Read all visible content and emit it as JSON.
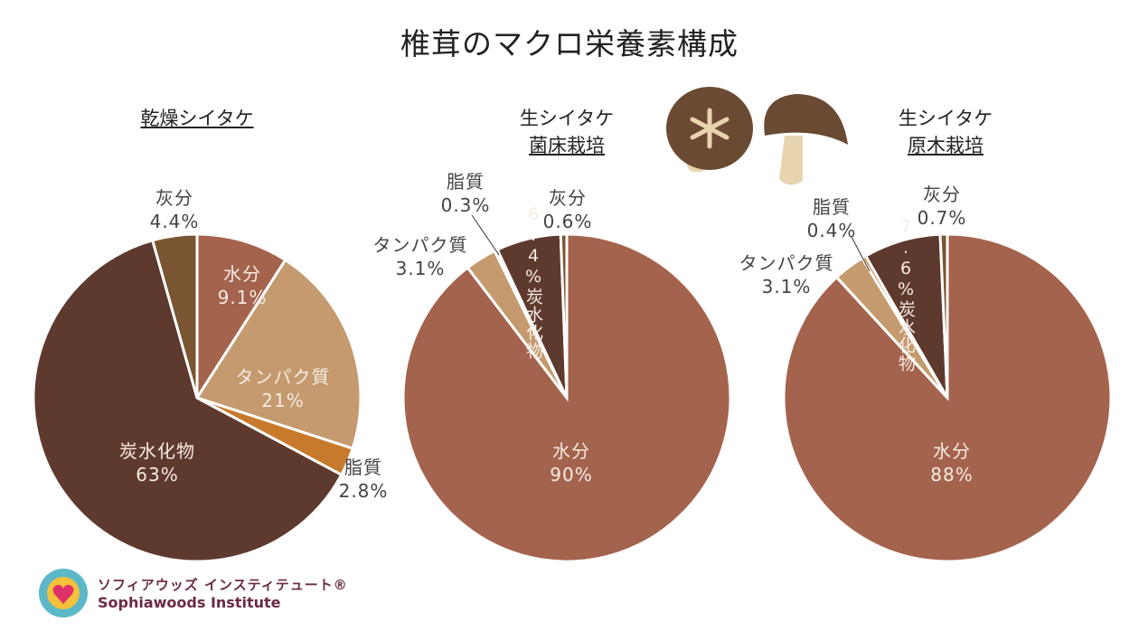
{
  "title": "椎茸のマクロ栄養素構成",
  "colors": {
    "水分": "#a4634d",
    "タンパク質": "#c49a6e",
    "脂質": "#c87a2c",
    "炭水化物": "#5e392d",
    "灰分": "#7a5532"
  },
  "chart_data": [
    {
      "type": "pie",
      "title": [
        "乾燥シイタケ"
      ],
      "categories": [
        "水分",
        "タンパク質",
        "脂質",
        "炭水化物",
        "灰分"
      ],
      "values": [
        9.1,
        21,
        2.8,
        63,
        4.4
      ],
      "labels": [
        "9.1%",
        "21%",
        "2.8%",
        "63%",
        "4.4%"
      ]
    },
    {
      "type": "pie",
      "title": [
        "生シイタケ",
        "菌床栽培"
      ],
      "categories": [
        "水分",
        "タンパク質",
        "脂質",
        "炭水化物",
        "灰分"
      ],
      "values": [
        90,
        3.1,
        0.3,
        6.4,
        0.6
      ],
      "labels": [
        "90%",
        "3.1%",
        "0.3%",
        "6.4%",
        "0.6%"
      ]
    },
    {
      "type": "pie",
      "title": [
        "生シイタケ",
        "原木栽培"
      ],
      "categories": [
        "水分",
        "タンパク質",
        "脂質",
        "炭水化物",
        "灰分"
      ],
      "values": [
        88,
        3.1,
        0.4,
        7.6,
        0.7
      ],
      "labels": [
        "88%",
        "3.1%",
        "0.4%",
        "7.6%",
        "0.7%"
      ]
    }
  ],
  "logo": {
    "jp": "ソフィアウッズ インスティテュート®",
    "en": "Sophiawoods Institute"
  }
}
